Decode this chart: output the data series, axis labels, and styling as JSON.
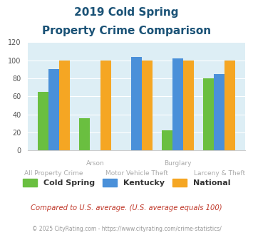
{
  "title_line1": "2019 Cold Spring",
  "title_line2": "Property Crime Comparison",
  "categories": [
    "All Property Crime",
    "Arson",
    "Motor Vehicle Theft",
    "Burglary",
    "Larceny & Theft"
  ],
  "x_labels_row1": [
    "",
    "Arson",
    "",
    "Burglary",
    ""
  ],
  "x_labels_row2": [
    "All Property Crime",
    "",
    "Motor Vehicle Theft",
    "",
    "Larceny & Theft"
  ],
  "cold_spring": [
    65,
    36,
    0,
    22,
    80
  ],
  "kentucky": [
    90,
    0,
    104,
    102,
    85
  ],
  "national": [
    100,
    100,
    100,
    100,
    100
  ],
  "colors": {
    "cold_spring": "#6abf40",
    "kentucky": "#4a90d9",
    "national": "#f5a623"
  },
  "ylim": [
    0,
    120
  ],
  "yticks": [
    0,
    20,
    40,
    60,
    80,
    100,
    120
  ],
  "bg_color": "#ddeef5",
  "title_color": "#1a5276",
  "label_color": "#aaaaaa",
  "footer_text": "Compared to U.S. average. (U.S. average equals 100)",
  "copyright_text": "© 2025 CityRating.com - https://www.cityrating.com/crime-statistics/",
  "legend_labels": [
    "Cold Spring",
    "Kentucky",
    "National"
  ]
}
